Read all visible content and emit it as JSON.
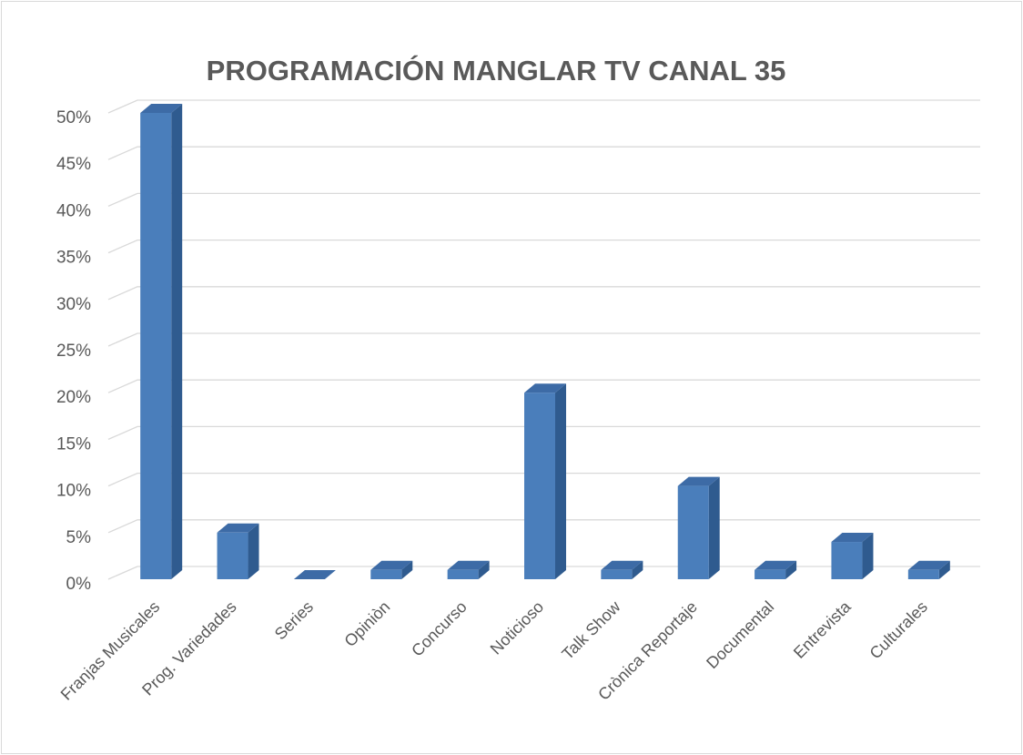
{
  "chart_data": {
    "type": "bar3d",
    "title": "PROGRAMACIÓN MANGLAR TV CANAL 35",
    "categories": [
      "Franjas Musicales",
      "Prog. Variedades",
      "Series",
      "Opiniòn",
      "Concurso",
      "Noticioso",
      "Talk Show",
      "Crònica Reportaje",
      "Documental",
      "Entrevista",
      "Culturales"
    ],
    "values": [
      50,
      5,
      0,
      1,
      1,
      20,
      1,
      10,
      1,
      4,
      1
    ],
    "color": "#4a7ebb",
    "ylim": [
      0,
      50
    ],
    "yticks": [
      {
        "value": 0,
        "label": "0%"
      },
      {
        "value": 5,
        "label": "5%"
      },
      {
        "value": 10,
        "label": "10%"
      },
      {
        "value": 15,
        "label": "15%"
      },
      {
        "value": 20,
        "label": "20%"
      },
      {
        "value": 25,
        "label": "25%"
      },
      {
        "value": 30,
        "label": "30%"
      },
      {
        "value": 35,
        "label": "35%"
      },
      {
        "value": 40,
        "label": "40%"
      },
      {
        "value": 45,
        "label": "45%"
      },
      {
        "value": 50,
        "label": "50%"
      }
    ],
    "grid": true
  }
}
